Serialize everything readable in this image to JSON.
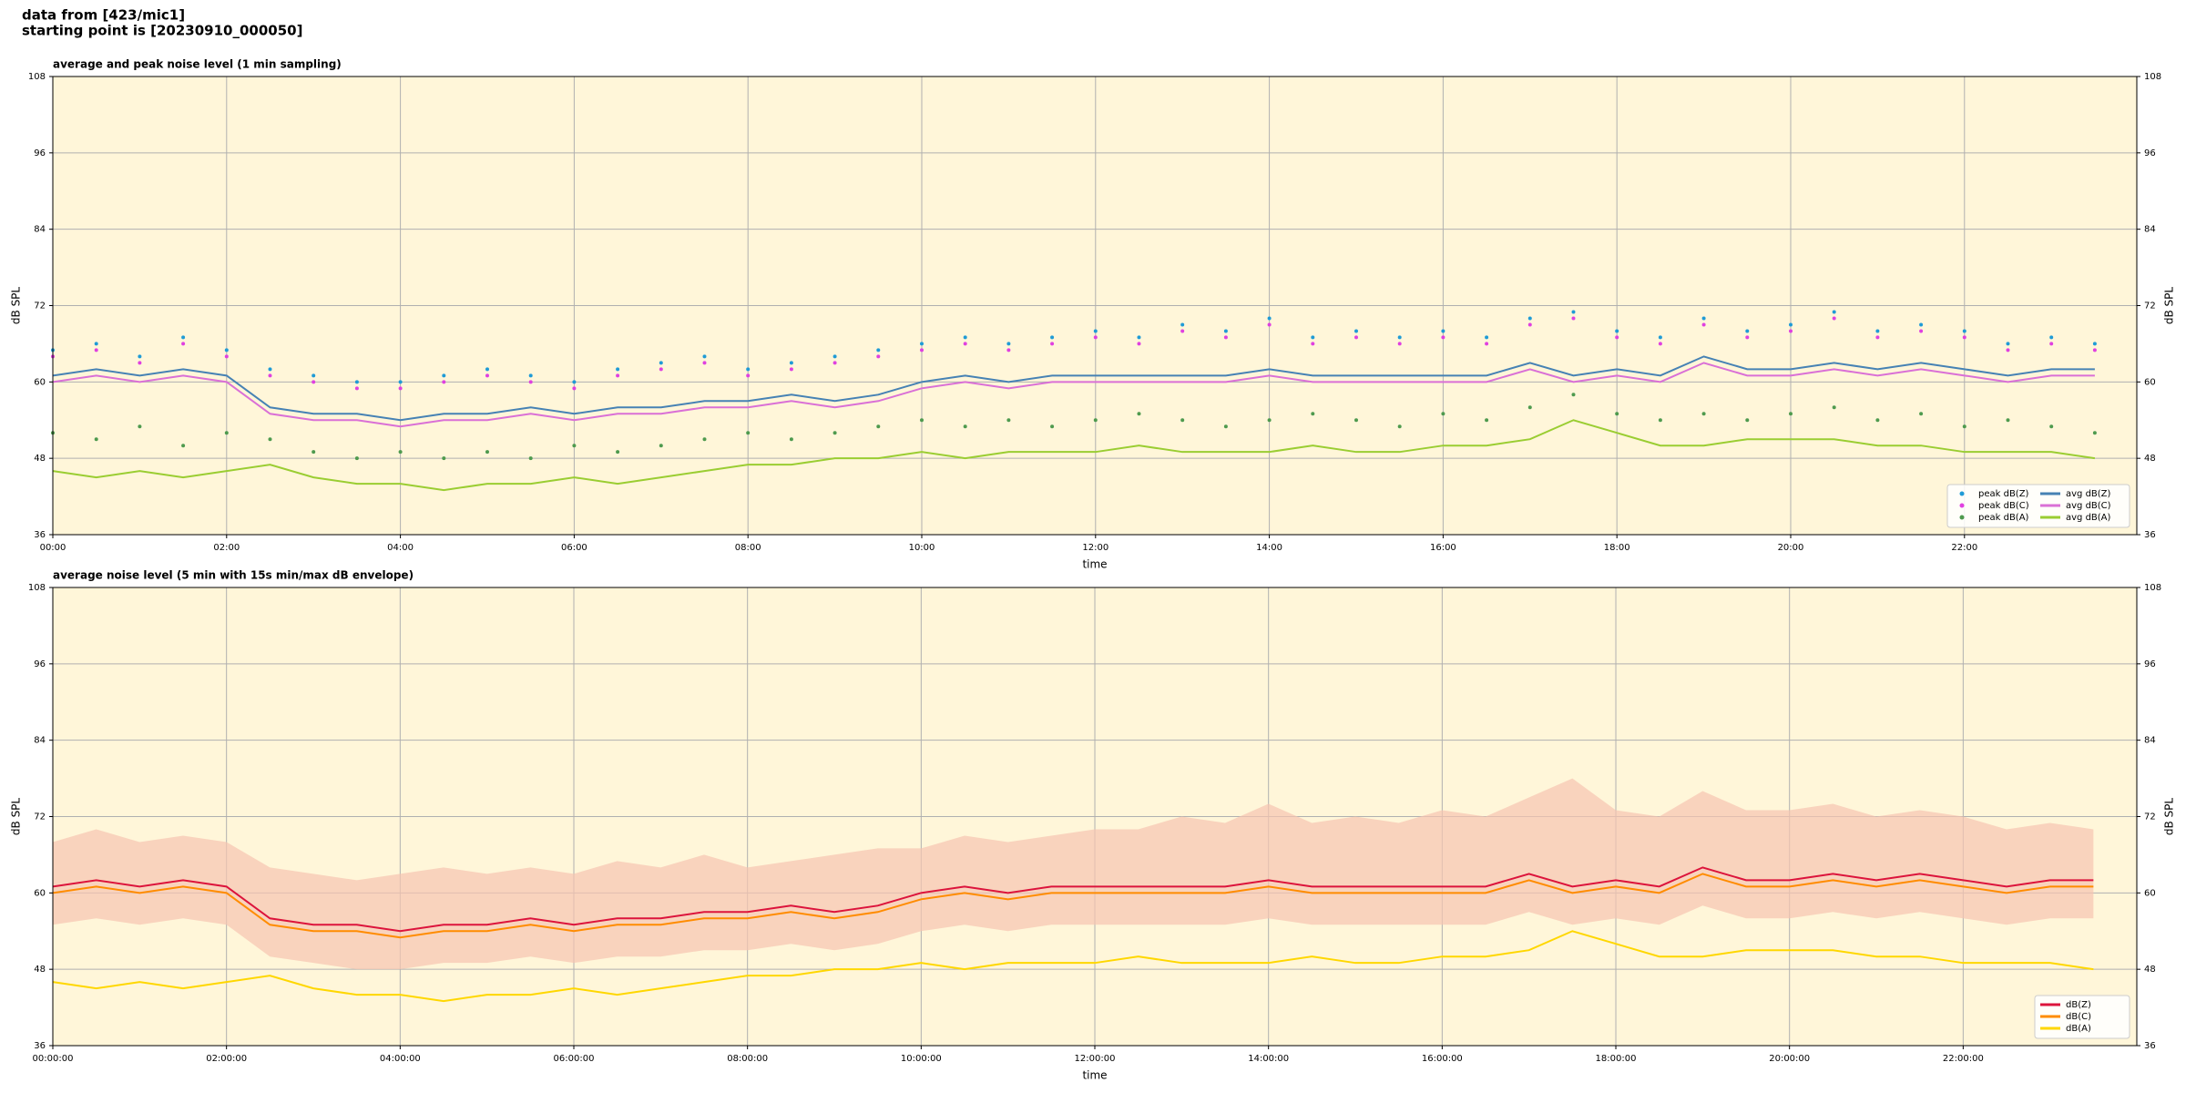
{
  "header": {
    "line1": "data from [423/mic1]",
    "line2": "starting point is [20230910_000050]"
  },
  "chart_data": [
    {
      "type": "line",
      "title": "average and peak noise level (1 min sampling)",
      "x_label": "time",
      "y_label": "dB SPL",
      "facecolor": "#fff6d9",
      "grid": true,
      "legend": "lower right",
      "legend_columns": 2,
      "x": [
        "00:00",
        "00:30",
        "01:00",
        "01:30",
        "02:00",
        "02:30",
        "03:00",
        "03:30",
        "04:00",
        "04:30",
        "05:00",
        "05:30",
        "06:00",
        "06:30",
        "07:00",
        "07:30",
        "08:00",
        "08:30",
        "09:00",
        "09:30",
        "10:00",
        "10:30",
        "11:00",
        "11:30",
        "12:00",
        "12:30",
        "13:00",
        "13:30",
        "14:00",
        "14:30",
        "15:00",
        "15:30",
        "16:00",
        "16:30",
        "17:00",
        "17:30",
        "18:00",
        "18:30",
        "19:00",
        "19:30",
        "20:00",
        "20:30",
        "21:00",
        "21:30",
        "22:00",
        "22:30",
        "23:00",
        "23:30"
      ],
      "xlim": [
        "00:00",
        "23:59"
      ],
      "xticks": [
        "00:00",
        "02:00",
        "04:00",
        "06:00",
        "08:00",
        "10:00",
        "12:00",
        "14:00",
        "16:00",
        "18:00",
        "20:00",
        "22:00"
      ],
      "ylim": [
        36,
        108
      ],
      "yticks": [
        36,
        48,
        60,
        72,
        84,
        96,
        108
      ],
      "series": [
        {
          "name": "peak dB(Z)",
          "kind": "scatter",
          "color": "#1f9bd6",
          "values": [
            65,
            66,
            64,
            67,
            65,
            62,
            61,
            60,
            60,
            61,
            62,
            61,
            60,
            62,
            63,
            64,
            62,
            63,
            64,
            65,
            66,
            67,
            66,
            67,
            68,
            67,
            69,
            68,
            70,
            67,
            68,
            67,
            68,
            67,
            70,
            71,
            68,
            67,
            70,
            68,
            69,
            71,
            68,
            69,
            68,
            66,
            67,
            66
          ]
        },
        {
          "name": "peak dB(C)",
          "kind": "scatter",
          "color": "#e040e0",
          "values": [
            64,
            65,
            63,
            66,
            64,
            61,
            60,
            59,
            59,
            60,
            61,
            60,
            59,
            61,
            62,
            63,
            61,
            62,
            63,
            64,
            65,
            66,
            65,
            66,
            67,
            66,
            68,
            67,
            69,
            66,
            67,
            66,
            67,
            66,
            69,
            70,
            67,
            66,
            69,
            67,
            68,
            70,
            67,
            68,
            67,
            65,
            66,
            65
          ]
        },
        {
          "name": "peak dB(A)",
          "kind": "scatter",
          "color": "#4e9a4e",
          "values": [
            52,
            51,
            53,
            50,
            52,
            51,
            49,
            48,
            49,
            48,
            49,
            48,
            50,
            49,
            50,
            51,
            52,
            51,
            52,
            53,
            54,
            53,
            54,
            53,
            54,
            55,
            54,
            53,
            54,
            55,
            54,
            53,
            55,
            54,
            56,
            58,
            55,
            54,
            55,
            54,
            55,
            56,
            54,
            55,
            53,
            54,
            53,
            52
          ]
        },
        {
          "name": "avg dB(Z)",
          "kind": "line",
          "color": "#4682b4",
          "values": [
            61,
            62,
            61,
            62,
            61,
            56,
            55,
            55,
            54,
            55,
            55,
            56,
            55,
            56,
            56,
            57,
            57,
            58,
            57,
            58,
            60,
            61,
            60,
            61,
            61,
            61,
            61,
            61,
            62,
            61,
            61,
            61,
            61,
            61,
            63,
            61,
            62,
            61,
            64,
            62,
            62,
            63,
            62,
            63,
            62,
            61,
            62,
            62
          ]
        },
        {
          "name": "avg dB(C)",
          "kind": "line",
          "color": "#da70d6",
          "values": [
            60,
            61,
            60,
            61,
            60,
            55,
            54,
            54,
            53,
            54,
            54,
            55,
            54,
            55,
            55,
            56,
            56,
            57,
            56,
            57,
            59,
            60,
            59,
            60,
            60,
            60,
            60,
            60,
            61,
            60,
            60,
            60,
            60,
            60,
            62,
            60,
            61,
            60,
            63,
            61,
            61,
            62,
            61,
            62,
            61,
            60,
            61,
            61
          ]
        },
        {
          "name": "avg dB(A)",
          "kind": "line",
          "color": "#9acd32",
          "values": [
            46,
            45,
            46,
            45,
            46,
            47,
            45,
            44,
            44,
            43,
            44,
            44,
            45,
            44,
            45,
            46,
            47,
            47,
            48,
            48,
            49,
            48,
            49,
            49,
            49,
            50,
            49,
            49,
            49,
            50,
            49,
            49,
            50,
            50,
            51,
            54,
            52,
            50,
            50,
            51,
            51,
            51,
            50,
            50,
            49,
            49,
            49,
            48
          ]
        }
      ]
    },
    {
      "type": "line",
      "title": "average noise level (5 min with 15s min/max dB envelope)",
      "x_label": "time",
      "y_label": "dB SPL",
      "facecolor": "#fff6d9",
      "grid": true,
      "legend": "lower right",
      "legend_columns": 1,
      "x": [
        "00:00:00",
        "00:30:00",
        "01:00:00",
        "01:30:00",
        "02:00:00",
        "02:30:00",
        "03:00:00",
        "03:30:00",
        "04:00:00",
        "04:30:00",
        "05:00:00",
        "05:30:00",
        "06:00:00",
        "06:30:00",
        "07:00:00",
        "07:30:00",
        "08:00:00",
        "08:30:00",
        "09:00:00",
        "09:30:00",
        "10:00:00",
        "10:30:00",
        "11:00:00",
        "11:30:00",
        "12:00:00",
        "12:30:00",
        "13:00:00",
        "13:30:00",
        "14:00:00",
        "14:30:00",
        "15:00:00",
        "15:30:00",
        "16:00:00",
        "16:30:00",
        "17:00:00",
        "17:30:00",
        "18:00:00",
        "18:30:00",
        "19:00:00",
        "19:30:00",
        "20:00:00",
        "20:30:00",
        "21:00:00",
        "21:30:00",
        "22:00:00",
        "22:30:00",
        "23:00:00",
        "23:30:00"
      ],
      "xlim": [
        "00:00:00",
        "23:59:59"
      ],
      "xticks": [
        "00:00:00",
        "02:00:00",
        "04:00:00",
        "06:00:00",
        "08:00:00",
        "10:00:00",
        "12:00:00",
        "14:00:00",
        "16:00:00",
        "18:00:00",
        "20:00:00",
        "22:00:00"
      ],
      "ylim": [
        36,
        108
      ],
      "yticks": [
        36,
        48,
        60,
        72,
        84,
        96,
        108
      ],
      "envelope": {
        "color": "#f7c4b0",
        "min": [
          55,
          56,
          55,
          56,
          55,
          50,
          49,
          48,
          48,
          49,
          49,
          50,
          49,
          50,
          50,
          51,
          51,
          52,
          51,
          52,
          54,
          55,
          54,
          55,
          55,
          55,
          55,
          55,
          56,
          55,
          55,
          55,
          55,
          55,
          57,
          55,
          56,
          55,
          58,
          56,
          56,
          57,
          56,
          57,
          56,
          55,
          56,
          56
        ],
        "max": [
          68,
          70,
          68,
          69,
          68,
          64,
          63,
          62,
          63,
          64,
          63,
          64,
          63,
          65,
          64,
          66,
          64,
          65,
          66,
          67,
          67,
          69,
          68,
          69,
          70,
          70,
          72,
          71,
          74,
          71,
          72,
          71,
          73,
          72,
          75,
          78,
          73,
          72,
          76,
          73,
          73,
          74,
          72,
          73,
          72,
          70,
          71,
          70
        ]
      },
      "series": [
        {
          "name": "dB(Z)",
          "kind": "line",
          "color": "#dc143c",
          "values": [
            61,
            62,
            61,
            62,
            61,
            56,
            55,
            55,
            54,
            55,
            55,
            56,
            55,
            56,
            56,
            57,
            57,
            58,
            57,
            58,
            60,
            61,
            60,
            61,
            61,
            61,
            61,
            61,
            62,
            61,
            61,
            61,
            61,
            61,
            63,
            61,
            62,
            61,
            64,
            62,
            62,
            63,
            62,
            63,
            62,
            61,
            62,
            62
          ]
        },
        {
          "name": "dB(C)",
          "kind": "line",
          "color": "#ff8c00",
          "values": [
            60,
            61,
            60,
            61,
            60,
            55,
            54,
            54,
            53,
            54,
            54,
            55,
            54,
            55,
            55,
            56,
            56,
            57,
            56,
            57,
            59,
            60,
            59,
            60,
            60,
            60,
            60,
            60,
            61,
            60,
            60,
            60,
            60,
            60,
            62,
            60,
            61,
            60,
            63,
            61,
            61,
            62,
            61,
            62,
            61,
            60,
            61,
            61
          ]
        },
        {
          "name": "dB(A)",
          "kind": "line",
          "color": "#ffd700",
          "values": [
            46,
            45,
            46,
            45,
            46,
            47,
            45,
            44,
            44,
            43,
            44,
            44,
            45,
            44,
            45,
            46,
            47,
            47,
            48,
            48,
            49,
            48,
            49,
            49,
            49,
            50,
            49,
            49,
            49,
            50,
            49,
            49,
            50,
            50,
            51,
            54,
            52,
            50,
            50,
            51,
            51,
            51,
            50,
            50,
            49,
            49,
            49,
            48
          ]
        }
      ]
    }
  ]
}
